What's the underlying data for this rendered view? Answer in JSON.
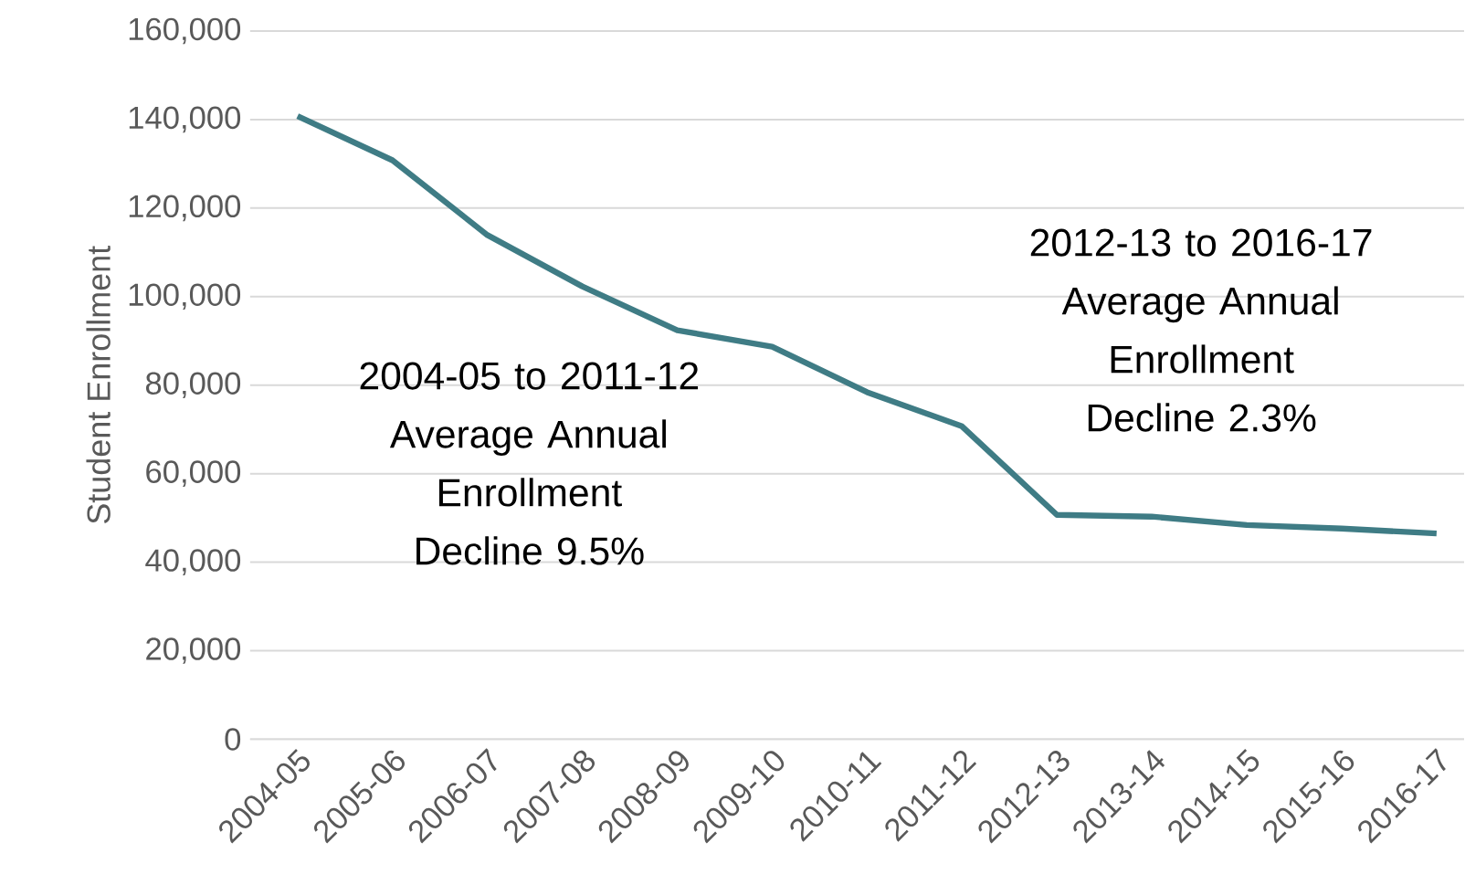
{
  "chart_data": {
    "type": "line",
    "ylabel": "Student Enrollment",
    "categories": [
      "2004-05",
      "2005-06",
      "2006-07",
      "2007-08",
      "2008-09",
      "2009-10",
      "2010-11",
      "2011-12",
      "2012-13",
      "2013-14",
      "2014-15",
      "2015-16",
      "2016-17"
    ],
    "values": [
      140800,
      130800,
      113900,
      102300,
      92400,
      88700,
      78400,
      70700,
      50700,
      50300,
      48400,
      47600,
      46500
    ],
    "color": "#3f7c85",
    "ylim": [
      0,
      160000
    ],
    "yticks": [
      0,
      {
        "value": 20000,
        "label": "20,000"
      },
      {
        "value": 40000,
        "label": "40,000"
      },
      {
        "value": 60000,
        "label": "60,000"
      },
      {
        "value": 80000,
        "label": "80,000"
      },
      {
        "value": 100000,
        "label": "100,000"
      },
      {
        "value": 120000,
        "label": "120,000"
      },
      {
        "value": 140000,
        "label": "140,000"
      },
      {
        "value": 160000,
        "label": "160,000"
      }
    ],
    "grid": "y",
    "marker": "none",
    "line_style": "solid",
    "annotations": [
      "2004-05 to 2011-12 Average Annual Enrollment Decline 9.5%",
      "2012-13 to 2016-17 Average Annual Enrollment Decline 2.3%"
    ]
  }
}
